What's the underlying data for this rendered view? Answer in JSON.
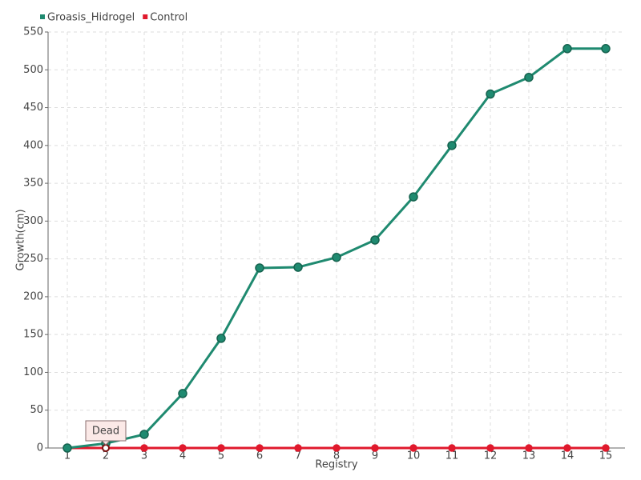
{
  "chart_data": {
    "type": "line",
    "categories": [
      "1",
      "2",
      "3",
      "4",
      "5",
      "6",
      "7",
      "8",
      "9",
      "10",
      "11",
      "12",
      "13",
      "14",
      "15"
    ],
    "series": [
      {
        "name": "Groasis_Hidrogel",
        "color": "#1f8a70",
        "values": [
          0,
          6,
          18,
          72,
          145,
          238,
          239,
          252,
          275,
          332,
          400,
          468,
          490,
          528,
          528
        ]
      },
      {
        "name": "Control",
        "color": "#e0192c",
        "values": [
          0,
          0,
          0,
          0,
          0,
          0,
          0,
          0,
          0,
          0,
          0,
          0,
          0,
          0,
          0
        ]
      }
    ],
    "xlabel": "Registry",
    "ylabel": "Growth(cm)",
    "ylim": [
      0,
      550
    ],
    "yticks": [
      0,
      50,
      100,
      150,
      200,
      250,
      300,
      350,
      400,
      450,
      500,
      550
    ],
    "grid": true,
    "legend": "top-left",
    "annotation": "Dead"
  }
}
